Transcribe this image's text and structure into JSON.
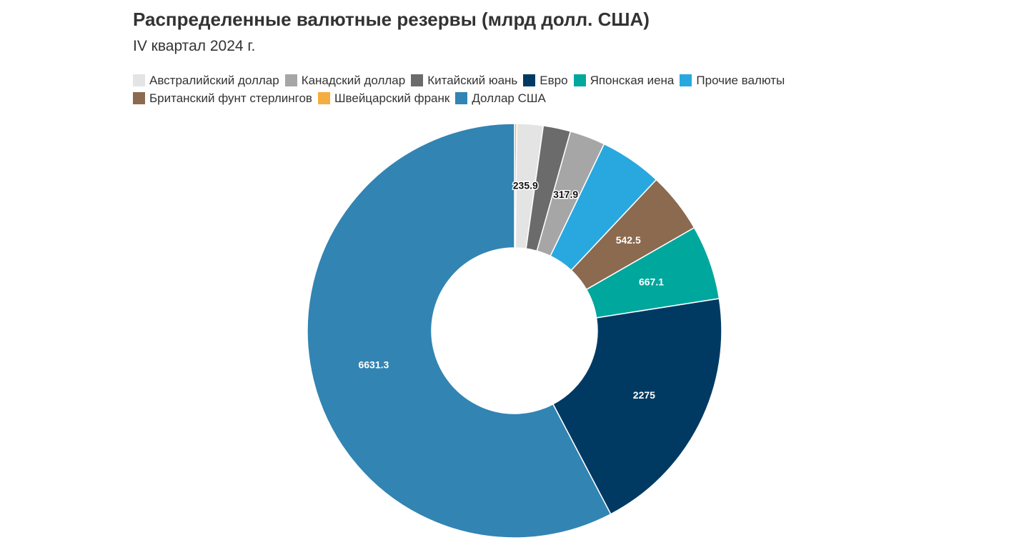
{
  "chart_data": {
    "type": "pie",
    "title": "Распределенные валютные резервы (млрд долл. США)",
    "subtitle": "IV квартал 2024 г.",
    "legend_position": "top-left",
    "hole": "donut",
    "slices": [
      {
        "name": "Швейцарский франк",
        "value": 20,
        "color": "#f6ad3f",
        "label": "",
        "label_color": "#ffffff"
      },
      {
        "name": "Австралийский доллар",
        "value": 235.9,
        "color": "#e4e4e4",
        "label": "235.9",
        "label_color": "#111111"
      },
      {
        "name": "Китайский юань",
        "value": 245,
        "color": "#6b6b6b",
        "label": "",
        "label_color": "#ffffff"
      },
      {
        "name": "Канадский доллар",
        "value": 317.9,
        "color": "#a6a6a6",
        "label": "317.9",
        "label_color": "#111111"
      },
      {
        "name": "Прочие валюты",
        "value": 560,
        "color": "#29a8e0",
        "label": "",
        "label_color": "#ffffff"
      },
      {
        "name": "Британский фунт стерлингов",
        "value": 542.5,
        "color": "#8b6a50",
        "label": "542.5",
        "label_color": "#ffffff"
      },
      {
        "name": "Японская иена",
        "value": 667.1,
        "color": "#00a79d",
        "label": "667.1",
        "label_color": "#ffffff"
      },
      {
        "name": "Евро",
        "value": 2275,
        "color": "#003a63",
        "label": "2275",
        "label_color": "#ffffff"
      },
      {
        "name": "Доллар США",
        "value": 6631.3,
        "color": "#3284b3",
        "label": "6631.3",
        "label_color": "#ffffff"
      }
    ],
    "legend": [
      [
        {
          "name": "Австралийский доллар",
          "color": "#e4e4e4"
        },
        {
          "name": "Канадский доллар",
          "color": "#a6a6a6"
        },
        {
          "name": "Китайский юань",
          "color": "#6b6b6b"
        },
        {
          "name": "Евро",
          "color": "#003a63"
        },
        {
          "name": "Японская иена",
          "color": "#00a79d"
        },
        {
          "name": "Прочие валюты",
          "color": "#29a8e0"
        }
      ],
      [
        {
          "name": "Британский фунт стерлингов",
          "color": "#8b6a50"
        },
        {
          "name": "Швейцарский франк",
          "color": "#f6ad3f"
        },
        {
          "name": "Доллар США",
          "color": "#3284b3"
        }
      ]
    ]
  }
}
